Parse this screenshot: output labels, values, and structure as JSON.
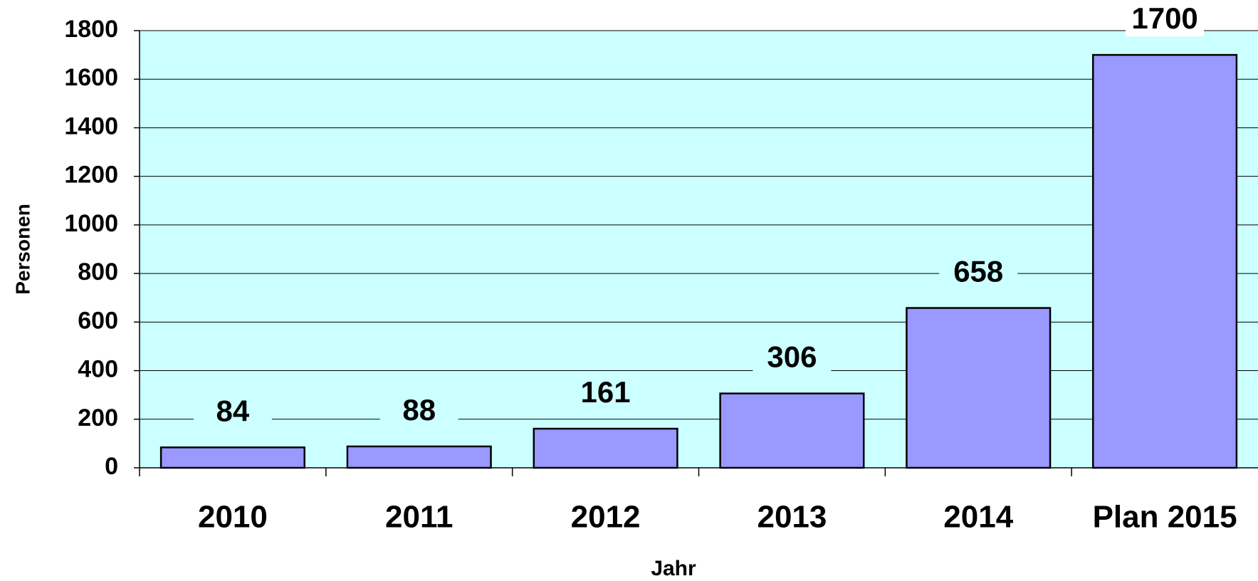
{
  "chart_data": {
    "type": "bar",
    "xlabel": "Jahr",
    "ylabel": "Personen",
    "categories": [
      "2010",
      "2011",
      "2012",
      "2013",
      "2014",
      "Plan 2015"
    ],
    "values": [
      84,
      88,
      161,
      306,
      658,
      1700
    ],
    "color": "#9999ff",
    "background": "#ccffff",
    "ylim": [
      0,
      1800
    ],
    "yticks": [
      0,
      200,
      400,
      600,
      800,
      1000,
      1200,
      1400,
      1600,
      1800
    ],
    "grid": true
  }
}
